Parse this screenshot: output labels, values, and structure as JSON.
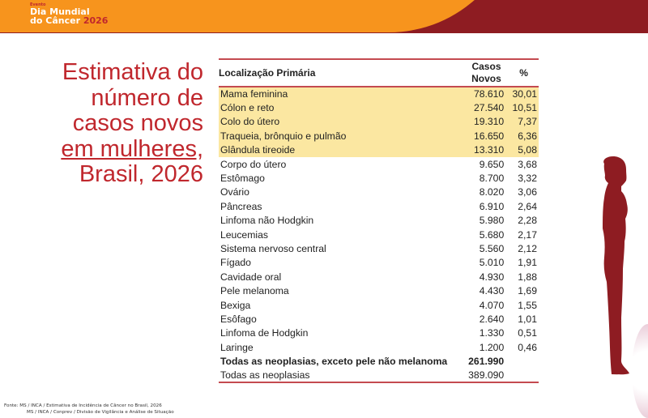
{
  "banner": {
    "event_label": "Evento",
    "line1": "Dia Mundial",
    "line2": "do Câncer",
    "year": "2026",
    "colors": {
      "orange": "#f7941d",
      "red": "#8e1c22"
    }
  },
  "title": {
    "line1": "Estimativa do",
    "line2": "número de",
    "line3": "casos novos",
    "line4": "em mulheres,",
    "line5": "Brasil, 2026"
  },
  "table": {
    "headers": {
      "location": "Localização Primária",
      "cases_line1": "Casos",
      "cases_line2": "Novos",
      "percent": "%"
    },
    "rows": [
      {
        "location": "Mama feminina",
        "cases": "78.610",
        "percent": "30,01",
        "highlight": true
      },
      {
        "location": "Cólon e reto",
        "cases": "27.540",
        "percent": "10,51",
        "highlight": true
      },
      {
        "location": "Colo do útero",
        "cases": "19.310",
        "percent": "7,37",
        "highlight": true
      },
      {
        "location": "Traqueia, brônquio e pulmão",
        "cases": "16.650",
        "percent": "6,36",
        "highlight": true
      },
      {
        "location": "Glândula tireoide",
        "cases": "13.310",
        "percent": "5,08",
        "highlight": true
      },
      {
        "location": "Corpo do útero",
        "cases": "9.650",
        "percent": "3,68"
      },
      {
        "location": "Estômago",
        "cases": "8.700",
        "percent": "3,32"
      },
      {
        "location": "Ovário",
        "cases": "8.020",
        "percent": "3,06"
      },
      {
        "location": "Pâncreas",
        "cases": "6.910",
        "percent": "2,64"
      },
      {
        "location": "Linfoma não Hodgkin",
        "cases": "5.980",
        "percent": "2,28"
      },
      {
        "location": "Leucemias",
        "cases": "5.680",
        "percent": "2,17"
      },
      {
        "location": "Sistema nervoso central",
        "cases": "5.560",
        "percent": "2,12"
      },
      {
        "location": "Fígado",
        "cases": "5.010",
        "percent": "1,91"
      },
      {
        "location": "Cavidade oral",
        "cases": "4.930",
        "percent": "1,88"
      },
      {
        "location": "Pele melanoma",
        "cases": "4.430",
        "percent": "1,69"
      },
      {
        "location": "Bexiga",
        "cases": "4.070",
        "percent": "1,55"
      },
      {
        "location": "Esôfago",
        "cases": "2.640",
        "percent": "1,01"
      },
      {
        "location": "Linfoma de Hodgkin",
        "cases": "1.330",
        "percent": "0,51"
      },
      {
        "location": "Laringe",
        "cases": "1.200",
        "percent": "0,46"
      }
    ],
    "totals": [
      {
        "location": "Todas as neoplasias, exceto pele não melanoma",
        "cases": "261.990",
        "percent": "",
        "bold": true
      },
      {
        "location": "Todas as neoplasias",
        "cases": "389.090",
        "percent": ""
      }
    ]
  },
  "source": {
    "line1": "Fonte: MS / INCA / Estimativa de Incidência de  Câncer no Brasil, 2026",
    "line2": "MS / INCA / Conprev / Divisão de Vigilância e Análise de Situação"
  },
  "accent_color": "#c0272d"
}
